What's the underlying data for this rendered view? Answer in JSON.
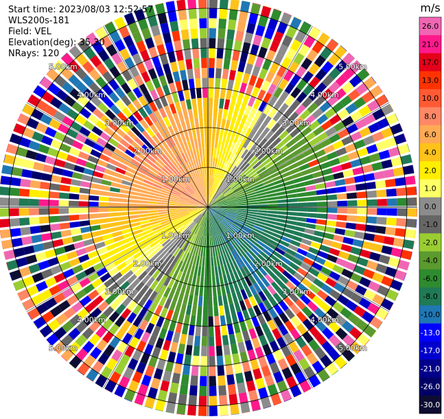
{
  "info": {
    "start_time": "Start time: 2023/08/03 12:52:57",
    "instrument": "WLS200s-181",
    "field": "Field: VEL",
    "elevation": "Elevation(deg): 35.30",
    "nrays": "NRays: 120"
  },
  "chart_data": {
    "type": "heatmap",
    "subtype": "polar-ppi",
    "field": "VEL",
    "units": "m/s",
    "n_rays": 120,
    "range_rings_km": [
      1.0,
      2.0,
      3.0,
      4.0,
      5.0
    ],
    "range_ring_labels": [
      "1.00km",
      "2.00km",
      "3.00km",
      "4.00km",
      "5.00km"
    ],
    "colorbar": {
      "unit_label": "m/s",
      "ticks": [
        "26.0",
        "21.0",
        "17.0",
        "13.0",
        "10.0",
        "8.0",
        "6.0",
        "4.0",
        "2.0",
        "1.0",
        "0.0",
        "-1.0",
        "-2.0",
        "-4.0",
        "-6.0",
        "-8.0",
        "-10.0",
        "-13.0",
        "-17.0",
        "-21.0",
        "-26.0",
        "-30.0"
      ],
      "colors": [
        "#f066b3",
        "#ff1a8c",
        "#e5001a",
        "#ff3300",
        "#ff5a33",
        "#ff8866",
        "#ffaa55",
        "#ffc21a",
        "#ffee00",
        "#ffff66",
        "#8c8c8c",
        "#666666",
        "#9acd32",
        "#5b9a2e",
        "#2e8b2e",
        "#1f7a55",
        "#1f77b4",
        "#0000ff",
        "#0000cc",
        "#00008b",
        "#000066",
        "#0d0d33"
      ]
    },
    "velocity_pattern": {
      "receding_sector": "north-west",
      "approaching_sector": "south-south-east",
      "max_abs_velocity_inner_ms": 8.0
    },
    "noise_beyond_km": 3.0
  }
}
